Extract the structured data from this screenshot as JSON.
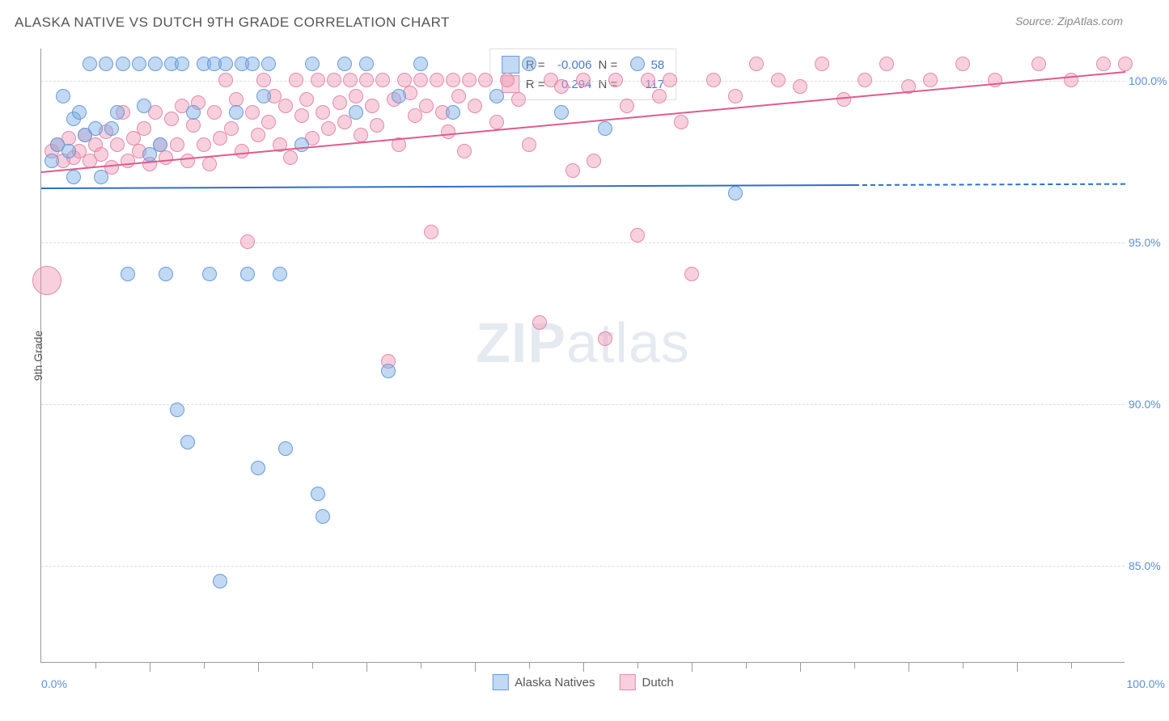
{
  "chart": {
    "title": "ALASKA NATIVE VS DUTCH 9TH GRADE CORRELATION CHART",
    "source": "Source: ZipAtlas.com",
    "watermark_prefix": "ZIP",
    "watermark_suffix": "atlas",
    "type": "scatter",
    "background_color": "#ffffff",
    "grid_color": "#dddddd",
    "axis_color": "#999999",
    "title_fontsize": 17,
    "title_color": "#555555",
    "label_fontsize": 14,
    "label_color": "#5b8fd6",
    "y_axis": {
      "title": "9th Grade",
      "min": 82,
      "max": 101,
      "ticks": [
        85.0,
        90.0,
        95.0,
        100.0
      ],
      "tick_labels": [
        "85.0%",
        "90.0%",
        "95.0%",
        "100.0%"
      ]
    },
    "x_axis": {
      "min": 0,
      "max": 100,
      "label_left": "0.0%",
      "label_right": "100.0%",
      "minor_ticks": [
        5,
        10,
        15,
        20,
        25,
        30,
        35,
        40,
        45,
        50,
        55,
        60,
        65,
        70,
        75,
        80,
        85,
        90,
        95
      ],
      "major_ticks": [
        10,
        20,
        30,
        40,
        50,
        60,
        70,
        80,
        90
      ]
    },
    "series": {
      "alaska_natives": {
        "label": "Alaska Natives",
        "fill_color": "rgba(120,170,230,0.45)",
        "stroke_color": "#6a9bd8",
        "marker_radius": 9,
        "R": "-0.006",
        "N": "58",
        "trend": {
          "x1": 0,
          "y1": 96.7,
          "x2": 75,
          "y2": 96.8,
          "color": "#2e6fc9",
          "dash_to_x": 100
        },
        "points": [
          [
            1,
            97.5
          ],
          [
            1.5,
            98
          ],
          [
            2,
            99.5
          ],
          [
            2.5,
            97.8
          ],
          [
            3,
            98.8
          ],
          [
            3,
            97
          ],
          [
            3.5,
            99
          ],
          [
            4,
            98.3
          ],
          [
            4.5,
            100.5
          ],
          [
            5,
            98.5
          ],
          [
            5.5,
            97
          ],
          [
            6,
            100.5
          ],
          [
            6.5,
            98.5
          ],
          [
            7,
            99
          ],
          [
            7.5,
            100.5
          ],
          [
            8,
            94
          ],
          [
            9,
            100.5
          ],
          [
            9.5,
            99.2
          ],
          [
            10,
            97.7
          ],
          [
            10.5,
            100.5
          ],
          [
            11,
            98
          ],
          [
            11.5,
            94
          ],
          [
            12,
            100.5
          ],
          [
            12.5,
            89.8
          ],
          [
            13,
            100.5
          ],
          [
            13.5,
            88.8
          ],
          [
            14,
            99
          ],
          [
            15,
            100.5
          ],
          [
            15.5,
            94
          ],
          [
            16,
            100.5
          ],
          [
            16.5,
            84.5
          ],
          [
            17,
            100.5
          ],
          [
            18,
            99
          ],
          [
            18.5,
            100.5
          ],
          [
            19,
            94
          ],
          [
            19.5,
            100.5
          ],
          [
            20,
            88
          ],
          [
            20.5,
            99.5
          ],
          [
            21,
            100.5
          ],
          [
            22,
            94
          ],
          [
            22.5,
            88.6
          ],
          [
            24,
            98
          ],
          [
            25,
            100.5
          ],
          [
            25.5,
            87.2
          ],
          [
            26,
            86.5
          ],
          [
            28,
            100.5
          ],
          [
            29,
            99
          ],
          [
            30,
            100.5
          ],
          [
            32,
            91
          ],
          [
            33,
            99.5
          ],
          [
            35,
            100.5
          ],
          [
            38,
            99
          ],
          [
            42,
            99.5
          ],
          [
            45,
            100.5
          ],
          [
            48,
            99
          ],
          [
            52,
            98.5
          ],
          [
            55,
            100.5
          ],
          [
            64,
            96.5
          ]
        ]
      },
      "dutch": {
        "label": "Dutch",
        "fill_color": "rgba(240,150,180,0.45)",
        "stroke_color": "#e48aac",
        "marker_radius": 9,
        "R": "0.294",
        "N": "117",
        "trend": {
          "x1": 0,
          "y1": 97.2,
          "x2": 100,
          "y2": 100.3,
          "color": "#e05a8c"
        },
        "points": [
          [
            0.5,
            93.8,
            18
          ],
          [
            1,
            97.8
          ],
          [
            1.5,
            98
          ],
          [
            2,
            97.5
          ],
          [
            2.5,
            98.2
          ],
          [
            3,
            97.6
          ],
          [
            3.5,
            97.8
          ],
          [
            4,
            98.3
          ],
          [
            4.5,
            97.5
          ],
          [
            5,
            98
          ],
          [
            5.5,
            97.7
          ],
          [
            6,
            98.4
          ],
          [
            6.5,
            97.3
          ],
          [
            7,
            98
          ],
          [
            7.5,
            99
          ],
          [
            8,
            97.5
          ],
          [
            8.5,
            98.2
          ],
          [
            9,
            97.8
          ],
          [
            9.5,
            98.5
          ],
          [
            10,
            97.4
          ],
          [
            10.5,
            99
          ],
          [
            11,
            98
          ],
          [
            11.5,
            97.6
          ],
          [
            12,
            98.8
          ],
          [
            12.5,
            98
          ],
          [
            13,
            99.2
          ],
          [
            13.5,
            97.5
          ],
          [
            14,
            98.6
          ],
          [
            14.5,
            99.3
          ],
          [
            15,
            98
          ],
          [
            15.5,
            97.4
          ],
          [
            16,
            99
          ],
          [
            16.5,
            98.2
          ],
          [
            17,
            100
          ],
          [
            17.5,
            98.5
          ],
          [
            18,
            99.4
          ],
          [
            18.5,
            97.8
          ],
          [
            19,
            95
          ],
          [
            19.5,
            99
          ],
          [
            20,
            98.3
          ],
          [
            20.5,
            100
          ],
          [
            21,
            98.7
          ],
          [
            21.5,
            99.5
          ],
          [
            22,
            98
          ],
          [
            22.5,
            99.2
          ],
          [
            23,
            97.6
          ],
          [
            23.5,
            100
          ],
          [
            24,
            98.9
          ],
          [
            24.5,
            99.4
          ],
          [
            25,
            98.2
          ],
          [
            25.5,
            100
          ],
          [
            26,
            99
          ],
          [
            26.5,
            98.5
          ],
          [
            27,
            100
          ],
          [
            27.5,
            99.3
          ],
          [
            28,
            98.7
          ],
          [
            28.5,
            100
          ],
          [
            29,
            99.5
          ],
          [
            29.5,
            98.3
          ],
          [
            30,
            100
          ],
          [
            30.5,
            99.2
          ],
          [
            31,
            98.6
          ],
          [
            31.5,
            100
          ],
          [
            32,
            91.3
          ],
          [
            32.5,
            99.4
          ],
          [
            33,
            98
          ],
          [
            33.5,
            100
          ],
          [
            34,
            99.6
          ],
          [
            34.5,
            98.9
          ],
          [
            35,
            100
          ],
          [
            35.5,
            99.2
          ],
          [
            36,
            95.3
          ],
          [
            36.5,
            100
          ],
          [
            37,
            99
          ],
          [
            37.5,
            98.4
          ],
          [
            38,
            100
          ],
          [
            38.5,
            99.5
          ],
          [
            39,
            97.8
          ],
          [
            39.5,
            100
          ],
          [
            40,
            99.2
          ],
          [
            41,
            100
          ],
          [
            42,
            98.7
          ],
          [
            43,
            100
          ],
          [
            44,
            99.4
          ],
          [
            45,
            98
          ],
          [
            46,
            92.5
          ],
          [
            47,
            100
          ],
          [
            48,
            99.8
          ],
          [
            49,
            97.2
          ],
          [
            50,
            100
          ],
          [
            51,
            97.5
          ],
          [
            52,
            92
          ],
          [
            53,
            100
          ],
          [
            54,
            99.2
          ],
          [
            55,
            95.2
          ],
          [
            56,
            100
          ],
          [
            57,
            99.5
          ],
          [
            58,
            100
          ],
          [
            59,
            98.7
          ],
          [
            60,
            94
          ],
          [
            62,
            100
          ],
          [
            64,
            99.5
          ],
          [
            66,
            100.5
          ],
          [
            68,
            100
          ],
          [
            70,
            99.8
          ],
          [
            72,
            100.5
          ],
          [
            74,
            99.4
          ],
          [
            76,
            100
          ],
          [
            78,
            100.5
          ],
          [
            80,
            99.8
          ],
          [
            82,
            100
          ],
          [
            85,
            100.5
          ],
          [
            88,
            100
          ],
          [
            92,
            100.5
          ],
          [
            95,
            100
          ],
          [
            98,
            100.5
          ],
          [
            100,
            100.5
          ]
        ]
      }
    },
    "stats_box": {
      "R_label": "R =",
      "N_label": "N ="
    },
    "bottom_legend": {
      "items": [
        "alaska_natives",
        "dutch"
      ]
    }
  }
}
